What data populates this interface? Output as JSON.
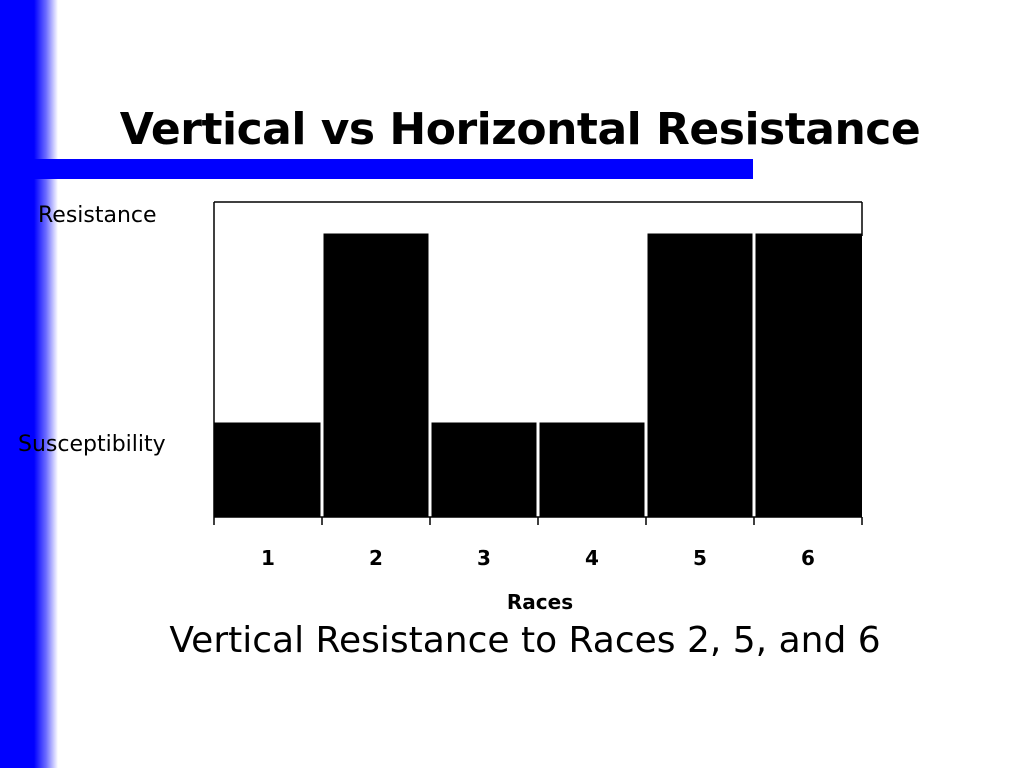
{
  "slide": {
    "title": "Vertical vs Horizontal Resistance",
    "caption": "Vertical Resistance to Races 2, 5, and 6",
    "colors": {
      "accent": "#0000ff",
      "bars": "#000000",
      "background": "#ffffff"
    }
  },
  "chart_data": {
    "type": "bar",
    "title": "",
    "xlabel": "Races",
    "ylabel": "",
    "categories": [
      "1",
      "2",
      "3",
      "4",
      "5",
      "6"
    ],
    "values": [
      0.3,
      0.9,
      0.3,
      0.3,
      0.9,
      0.9
    ],
    "ylim": [
      0,
      1
    ],
    "y_tick_labels": {
      "top": "Resistance",
      "bottom": "Susceptibility"
    },
    "grid": false,
    "legend": "none"
  }
}
